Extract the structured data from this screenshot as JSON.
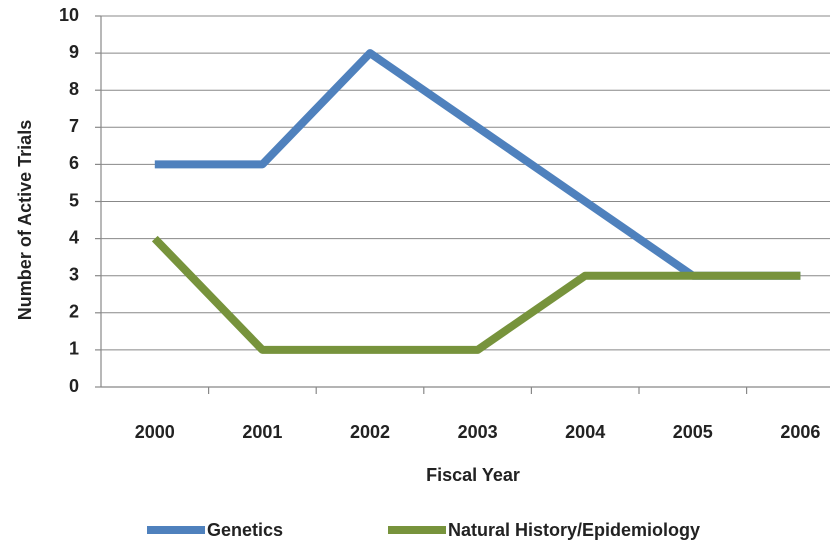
{
  "chart_data": {
    "type": "line",
    "x_label": "Fiscal Year",
    "y_label": "Number of Active Trials",
    "categories": [
      "2000",
      "2001",
      "2002",
      "2003",
      "2004",
      "2005",
      "2006"
    ],
    "series": [
      {
        "name": "Genetics",
        "color": "#4f81bd",
        "values": [
          6,
          6,
          9,
          7,
          5,
          3,
          3
        ]
      },
      {
        "name": "Natural History/Epidemiology",
        "color": "#77933c",
        "values": [
          4,
          1,
          1,
          1,
          3,
          3,
          3
        ]
      }
    ],
    "ylim": [
      0,
      10
    ],
    "yticks": [
      0,
      1,
      2,
      3,
      4,
      5,
      6,
      7,
      8,
      9,
      10
    ],
    "grid": true,
    "legend": "bottom"
  }
}
